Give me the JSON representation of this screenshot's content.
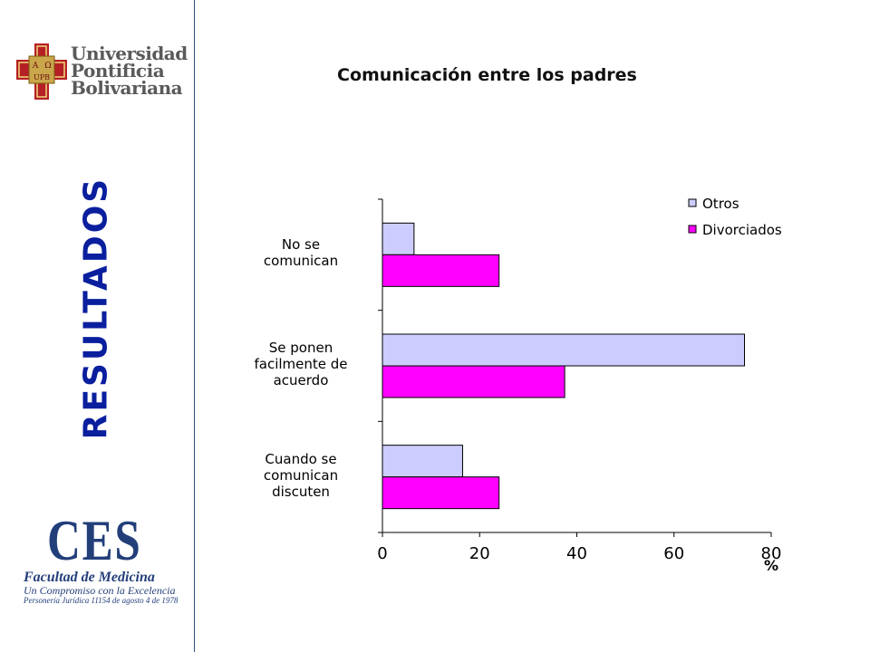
{
  "header": {
    "university_lines": [
      "Universidad",
      "Pontificia",
      "Bolivariana"
    ],
    "crest_letters": [
      "A",
      "Ω",
      "UPB"
    ]
  },
  "sidebar": {
    "vertical_title": "RESULTADOS"
  },
  "footer_logo": {
    "acronym": "CES",
    "line1": "Facultad de Medicina",
    "line2": "Un Compromiso con la Excelencia",
    "line3": "Personería Jurídica 11154 de agosto 4 de 1978"
  },
  "colors": {
    "otros": "#ccccff",
    "divorciados": "#ff00ff",
    "accent_blue": "#0a1f9e",
    "logo_red": "#b52025"
  },
  "chart_data": {
    "type": "bar",
    "orientation": "horizontal",
    "title": "Comunicación entre los padres",
    "categories": [
      "No se comunican",
      "Se ponen facilmente de acuerdo",
      "Cuando se comunican discuten"
    ],
    "category_lines": [
      [
        "No se",
        "comunican"
      ],
      [
        "Se ponen",
        "facilmente de",
        "acuerdo"
      ],
      [
        "Cuando se",
        "comunican",
        "discuten"
      ]
    ],
    "series": [
      {
        "name": "Otros",
        "values": [
          6.5,
          74.5,
          16.5
        ]
      },
      {
        "name": "Divorciados",
        "values": [
          24,
          37.5,
          24
        ]
      }
    ],
    "xlim": [
      0,
      80
    ],
    "xticks": [
      "0",
      "20",
      "40",
      "60",
      "80"
    ],
    "xlabel": "%",
    "ylabel": "",
    "grid": false,
    "legend_position": "top-right"
  }
}
